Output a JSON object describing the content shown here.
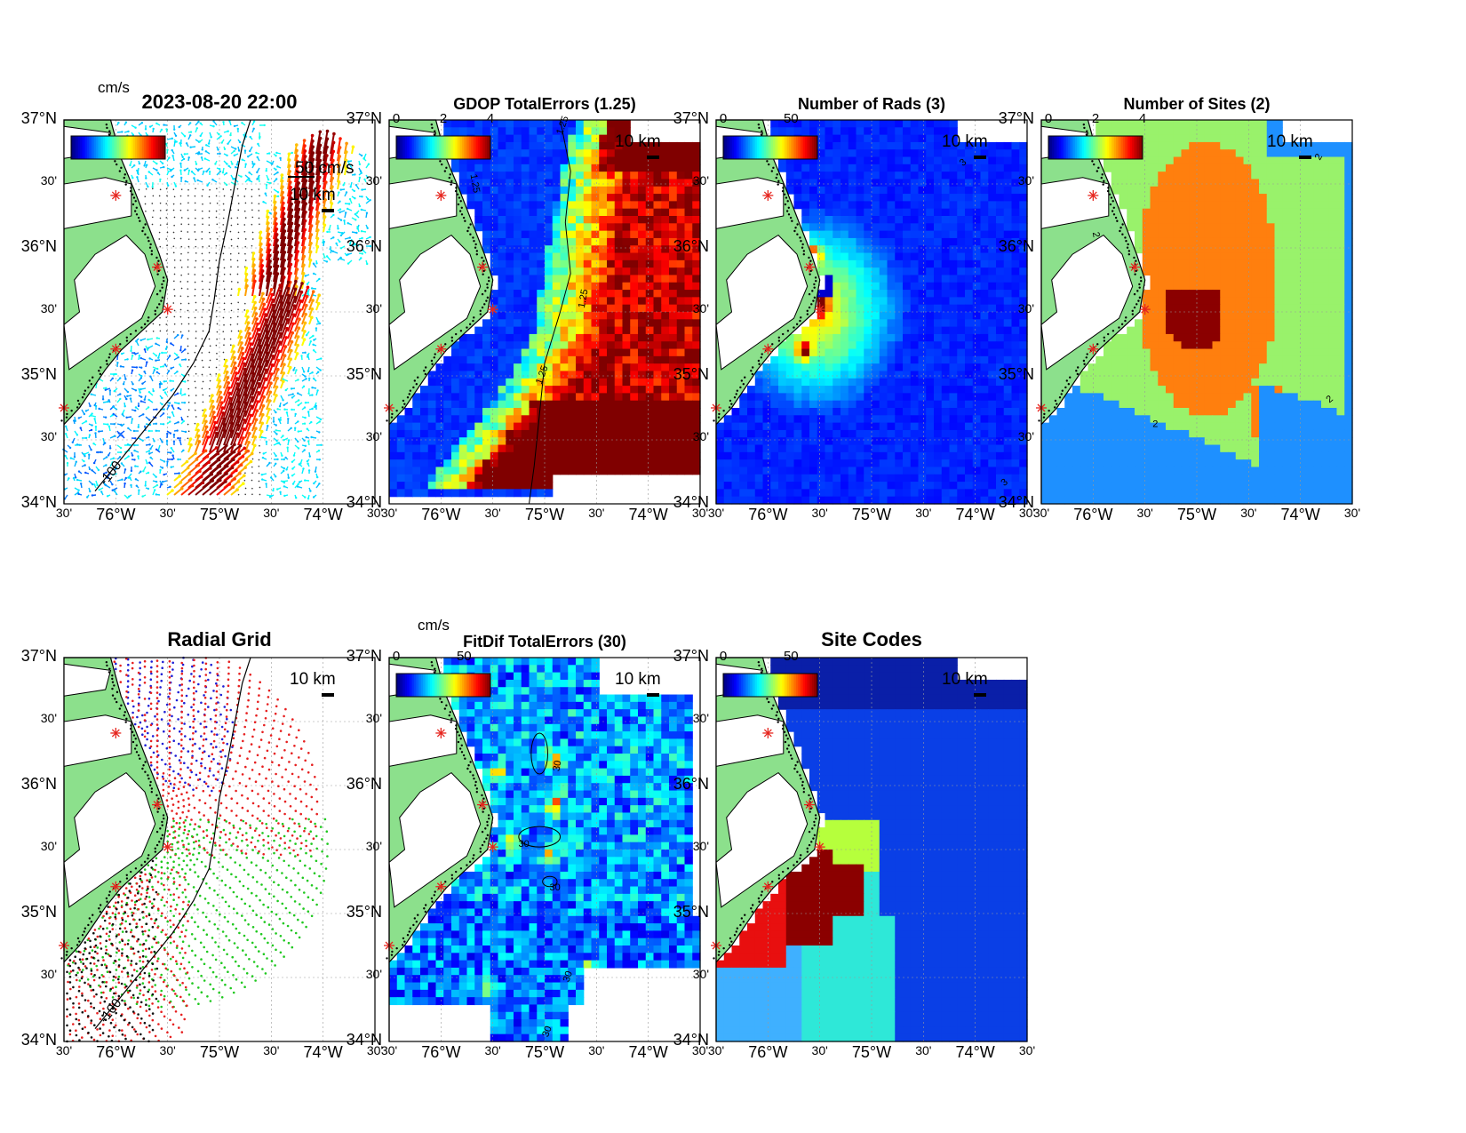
{
  "axes": {
    "lat_labels": [
      "37°N",
      "30'",
      "36°N",
      "30'",
      "35°N",
      "30'",
      "34°N"
    ],
    "lat_values": [
      37,
      36.5,
      36,
      35.5,
      35,
      34.5,
      34
    ],
    "lon_labels": [
      "30'",
      "76°W",
      "30'",
      "75°W",
      "30'",
      "74°W",
      "30'"
    ],
    "lon_values": [
      -76.5,
      -76,
      -75.5,
      -75,
      -74.5,
      -74,
      -73.5
    ],
    "lat_range": [
      34,
      37
    ],
    "lon_range": [
      -76.5,
      -73.5
    ]
  },
  "scale_bar_label": "10 km",
  "radar_sites": [
    {
      "lat": 36.41,
      "lon": -76.0
    },
    {
      "lat": 35.85,
      "lon": -75.6
    },
    {
      "lat": 35.52,
      "lon": -75.5
    },
    {
      "lat": 35.21,
      "lon": -76.0
    },
    {
      "lat": 34.75,
      "lon": -76.5
    }
  ],
  "panels": [
    {
      "id": "currents",
      "title": "2023-08-20 22:00",
      "unit_label": "cm/s",
      "colorbar_ticks": [],
      "reference_vector_label": "50 cm/s",
      "bathymetry_label": "-100",
      "contour_labels": []
    },
    {
      "id": "gdop",
      "title": "GDOP TotalErrors (1.25)",
      "unit_label": "",
      "colorbar_ticks": [
        "0",
        "2",
        "4"
      ],
      "contour_labels": [
        "1.25",
        "1.25",
        "1.25",
        "1.25"
      ]
    },
    {
      "id": "rads",
      "title": "Number of Rads (3)",
      "unit_label": "",
      "colorbar_ticks": [
        "0",
        "50"
      ],
      "contour_labels": [
        "3",
        "3"
      ]
    },
    {
      "id": "sites",
      "title": "Number of Sites (2)",
      "unit_label": "",
      "colorbar_ticks": [
        "0",
        "2",
        "4"
      ],
      "contour_labels": [
        "2",
        "2",
        "2",
        "2"
      ]
    },
    {
      "id": "radial",
      "title": "Radial Grid",
      "unit_label": "",
      "colorbar_ticks": [],
      "bathymetry_label": "-100",
      "contour_labels": [
        "-100"
      ]
    },
    {
      "id": "fitdif",
      "title": "FitDif TotalErrors (30)",
      "unit_label": "cm/s",
      "colorbar_ticks": [
        "0",
        "50"
      ],
      "contour_labels": [
        "30",
        "30",
        "30",
        "30",
        "30"
      ]
    },
    {
      "id": "codes",
      "title": "Site Codes",
      "unit_label": "",
      "colorbar_ticks": [
        "0",
        "50"
      ],
      "contour_labels": []
    }
  ],
  "colors": {
    "land": "#8ce08c",
    "site_marker": "#e6261f",
    "radial_sites": [
      "#1f1fd6",
      "#e62020",
      "#20c820",
      "#e62020",
      "#111111"
    ],
    "site_count": {
      "1": "#1e90ff",
      "2": "#99f26b",
      "3": "#ff7f0e",
      "4": "#8b0000"
    },
    "site_codes": [
      "#0a1fa8",
      "#0a3fe6",
      "#3fb0ff",
      "#2ee8d8",
      "#b6ff3c",
      "#e80f0f",
      "#8b0000"
    ]
  }
}
